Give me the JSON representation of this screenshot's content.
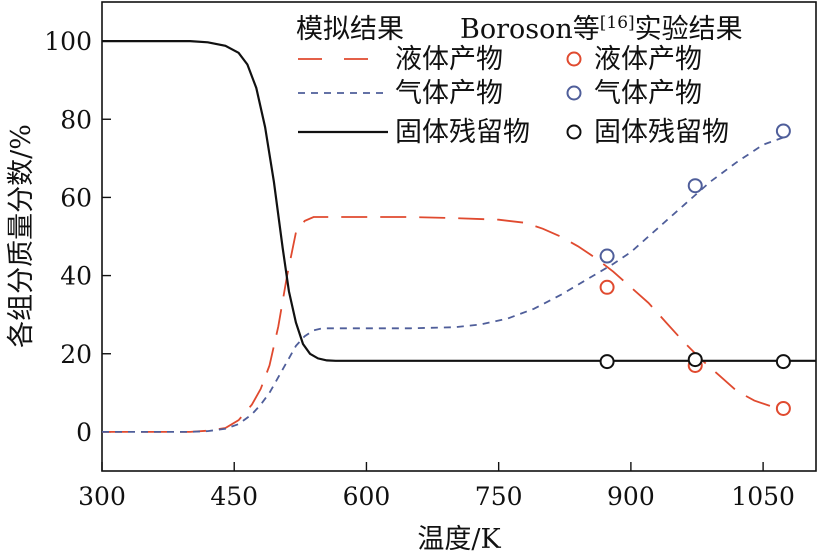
{
  "chart_data": {
    "type": "line",
    "xlabel": "温度/K",
    "ylabel": "各组分质量分数/%",
    "xlim": [
      300,
      1110
    ],
    "ylim": [
      -10,
      110
    ],
    "xticks": [
      300,
      450,
      600,
      750,
      900,
      1050
    ],
    "yticks": [
      0,
      20,
      40,
      60,
      80,
      100
    ],
    "grid": false,
    "legend": {
      "placement": "top-right",
      "header_sim": "模拟结果",
      "header_exp": "Boroson等",
      "header_exp_ref": "[16]",
      "header_exp_suffix": "实验结果"
    },
    "series": [
      {
        "name": "液体产物",
        "kind": "simulation",
        "color": "#e04a2f",
        "style": "long-dash",
        "x": [
          300,
          350,
          400,
          420,
          440,
          455,
          470,
          480,
          490,
          500,
          510,
          520,
          530,
          540,
          550,
          560,
          600,
          650,
          700,
          750,
          780,
          800,
          820,
          840,
          860,
          880,
          900,
          920,
          940,
          960,
          980,
          1000,
          1020,
          1040,
          1060,
          1075
        ],
        "y": [
          0,
          0,
          0,
          0.3,
          1,
          3,
          7,
          11,
          17,
          27,
          40,
          51,
          54,
          55,
          55,
          55,
          55,
          55,
          54.7,
          54.3,
          53.5,
          52,
          50,
          47.5,
          44.5,
          41,
          37,
          33,
          28,
          23,
          18.5,
          14.5,
          10.5,
          8,
          6.5,
          6.3
        ]
      },
      {
        "name": "气体产物",
        "kind": "simulation",
        "color": "#4f5e9a",
        "style": "short-dash",
        "x": [
          300,
          350,
          400,
          420,
          440,
          455,
          470,
          480,
          490,
          500,
          510,
          520,
          530,
          540,
          550,
          560,
          600,
          650,
          700,
          730,
          760,
          790,
          820,
          850,
          880,
          900,
          930,
          960,
          990,
          1020,
          1050,
          1075
        ],
        "y": [
          0,
          0,
          0,
          0.2,
          0.8,
          2,
          4.5,
          7,
          10,
          14,
          18,
          22,
          24.5,
          26,
          26.5,
          26.5,
          26.5,
          26.5,
          26.8,
          27.5,
          29,
          31.5,
          35,
          39,
          43,
          46,
          52,
          58,
          64,
          69,
          73.5,
          75.5
        ]
      },
      {
        "name": "固体残留物",
        "kind": "simulation",
        "color": "#111111",
        "style": "solid",
        "x": [
          300,
          350,
          400,
          420,
          440,
          455,
          465,
          475,
          485,
          495,
          505,
          512,
          520,
          528,
          536,
          545,
          555,
          565,
          600,
          700,
          800,
          900,
          1000,
          1100,
          1110
        ],
        "y": [
          100,
          100,
          100,
          99.7,
          98.8,
          97,
          94,
          88,
          78,
          64,
          47,
          36,
          28,
          22.5,
          20,
          18.8,
          18.3,
          18.2,
          18.2,
          18.2,
          18.2,
          18.2,
          18.2,
          18.2,
          18.2
        ]
      },
      {
        "name": "液体产物",
        "kind": "experiment",
        "color": "#e04a2f",
        "x": [
          873,
          973,
          1073
        ],
        "y": [
          37,
          17,
          6
        ]
      },
      {
        "name": "气体产物",
        "kind": "experiment",
        "color": "#4f5e9a",
        "x": [
          873,
          973,
          1073
        ],
        "y": [
          45,
          63,
          77
        ]
      },
      {
        "name": "固体残留物",
        "kind": "experiment",
        "color": "#111111",
        "x": [
          873,
          973,
          1073
        ],
        "y": [
          18,
          18.5,
          18
        ]
      }
    ]
  }
}
